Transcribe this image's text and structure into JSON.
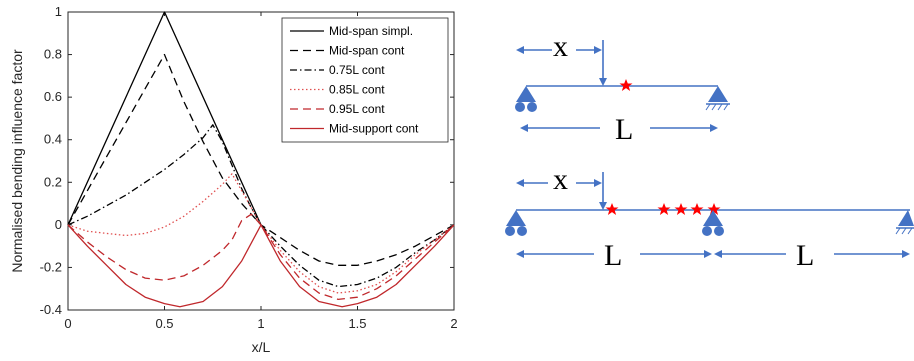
{
  "chart_data": {
    "type": "line",
    "xlabel": "x/L",
    "ylabel": "Normalised bending influence factor",
    "xlim": [
      0,
      2
    ],
    "ylim": [
      -0.4,
      1
    ],
    "xticks": [
      "0",
      "0.5",
      "1",
      "1.5",
      "2"
    ],
    "yticks": [
      "-0.4",
      "-0.2",
      "0",
      "0.2",
      "0.4",
      "0.6",
      "0.8",
      "1"
    ],
    "grid": false,
    "legend_position": "top-right",
    "series": [
      {
        "name": "Mid-span simpl.",
        "color": "#000000",
        "style": "solid",
        "x": [
          0,
          0.5,
          1
        ],
        "y": [
          0,
          1,
          0
        ]
      },
      {
        "name": "Mid-span cont",
        "color": "#000000",
        "style": "dashed",
        "x": [
          0,
          0.1,
          0.2,
          0.3,
          0.4,
          0.5,
          0.6,
          0.7,
          0.8,
          0.9,
          1.0,
          1.1,
          1.2,
          1.3,
          1.4,
          1.5,
          1.6,
          1.7,
          1.8,
          1.9,
          2.0
        ],
        "y": [
          0,
          0.16,
          0.32,
          0.48,
          0.64,
          0.8,
          0.58,
          0.39,
          0.22,
          0.1,
          0,
          -0.06,
          -0.12,
          -0.17,
          -0.19,
          -0.19,
          -0.17,
          -0.14,
          -0.1,
          -0.05,
          0
        ]
      },
      {
        "name": "0.75L cont",
        "color": "#000000",
        "style": "dashdot",
        "x": [
          0,
          0.1,
          0.2,
          0.3,
          0.4,
          0.5,
          0.6,
          0.7,
          0.75,
          0.8,
          0.85,
          0.9,
          0.95,
          1.0,
          1.1,
          1.2,
          1.3,
          1.4,
          1.5,
          1.6,
          1.7,
          1.8,
          1.9,
          2.0
        ],
        "y": [
          0,
          0.04,
          0.09,
          0.14,
          0.2,
          0.26,
          0.33,
          0.41,
          0.47,
          0.39,
          0.28,
          0.17,
          0.08,
          0,
          -0.1,
          -0.19,
          -0.26,
          -0.29,
          -0.28,
          -0.25,
          -0.2,
          -0.13,
          -0.07,
          0
        ]
      },
      {
        "name": "0.85L cont",
        "color": "#e05050",
        "style": "dotted",
        "x": [
          0,
          0.1,
          0.2,
          0.3,
          0.4,
          0.5,
          0.6,
          0.7,
          0.8,
          0.85,
          0.9,
          0.95,
          1.0,
          1.1,
          1.2,
          1.3,
          1.4,
          1.5,
          1.6,
          1.7,
          1.8,
          1.9,
          2.0
        ],
        "y": [
          0,
          -0.03,
          -0.04,
          -0.05,
          -0.04,
          -0.01,
          0.04,
          0.11,
          0.19,
          0.24,
          0.16,
          0.08,
          0,
          -0.12,
          -0.22,
          -0.29,
          -0.32,
          -0.31,
          -0.28,
          -0.22,
          -0.14,
          -0.07,
          0
        ]
      },
      {
        "name": "0.95L cont",
        "color": "#c0282c",
        "style": "dashed",
        "x": [
          0,
          0.1,
          0.2,
          0.3,
          0.4,
          0.5,
          0.6,
          0.7,
          0.8,
          0.85,
          0.9,
          0.95,
          1.0,
          1.1,
          1.2,
          1.3,
          1.4,
          1.5,
          1.6,
          1.7,
          1.8,
          1.9,
          2.0
        ],
        "y": [
          0,
          -0.08,
          -0.15,
          -0.21,
          -0.25,
          -0.26,
          -0.24,
          -0.19,
          -0.12,
          -0.07,
          0.02,
          0.05,
          0,
          -0.14,
          -0.25,
          -0.32,
          -0.35,
          -0.34,
          -0.3,
          -0.24,
          -0.16,
          -0.08,
          0
        ]
      },
      {
        "name": "Mid-support cont",
        "color": "#c0282c",
        "style": "solid",
        "x": [
          0,
          0.1,
          0.2,
          0.3,
          0.4,
          0.5,
          0.58,
          0.7,
          0.8,
          0.9,
          1.0,
          1.1,
          1.2,
          1.3,
          1.42,
          1.5,
          1.6,
          1.7,
          1.8,
          1.9,
          2.0
        ],
        "y": [
          0,
          -0.1,
          -0.19,
          -0.28,
          -0.34,
          -0.37,
          -0.385,
          -0.36,
          -0.29,
          -0.17,
          0,
          -0.17,
          -0.29,
          -0.36,
          -0.385,
          -0.37,
          -0.34,
          -0.28,
          -0.19,
          -0.1,
          0
        ]
      }
    ]
  },
  "diagram": {
    "x_label": "x",
    "span_label": "L",
    "arrow_color": "#4472c4",
    "marker_color": "#ff0000"
  }
}
